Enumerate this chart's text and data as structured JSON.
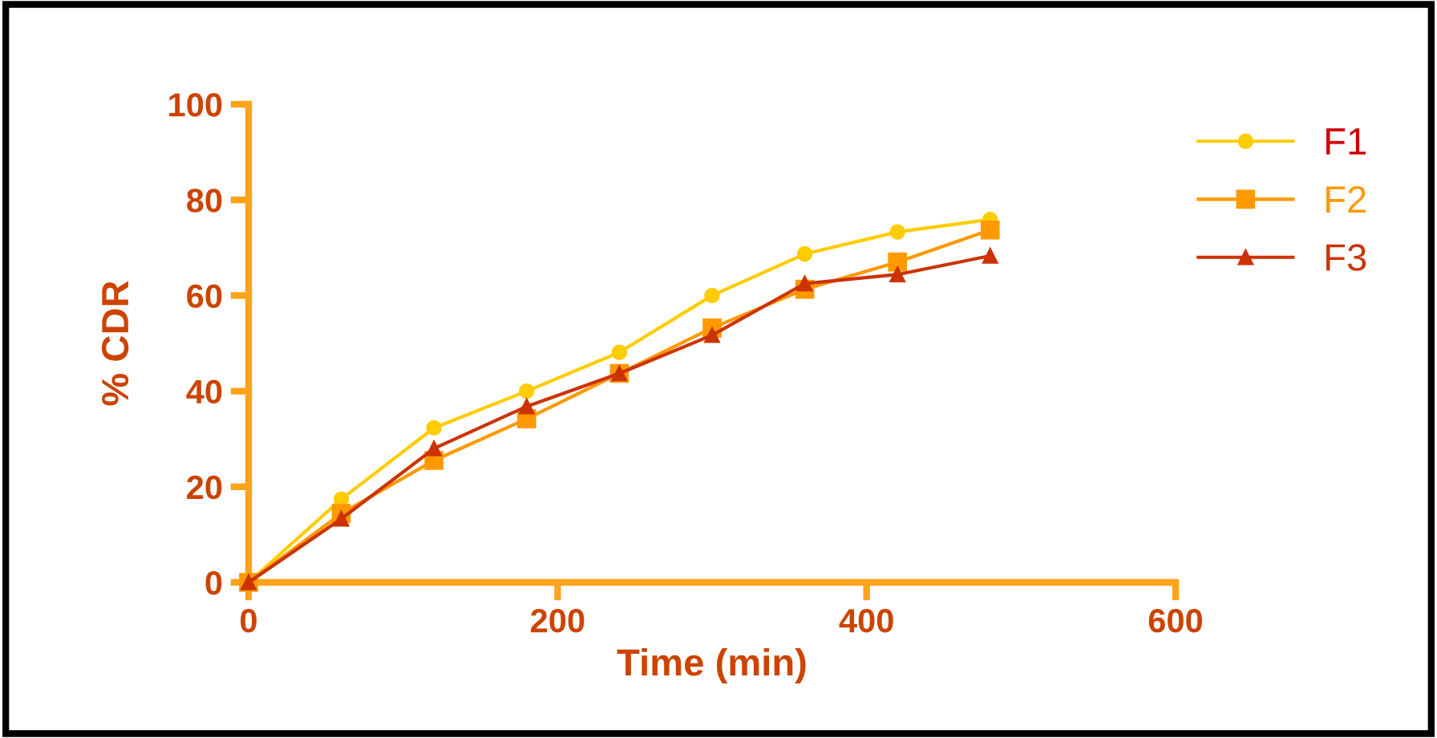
{
  "chart_data": {
    "type": "line",
    "xlabel": "Time (min)",
    "ylabel": "% CDR",
    "x": [
      0,
      60,
      120,
      180,
      240,
      300,
      360,
      420,
      480
    ],
    "series": [
      {
        "name": "F1",
        "color": "#ffcc00",
        "marker": "circle",
        "values": [
          0,
          17.4,
          32.3,
          40,
          48.1,
          60,
          68.7,
          73.3,
          75.9
        ]
      },
      {
        "name": "F2",
        "color": "#ff9900",
        "marker": "square",
        "values": [
          0,
          14.4,
          25.5,
          34.2,
          43.7,
          53.2,
          61.3,
          67,
          73.7
        ]
      },
      {
        "name": "F3",
        "color": "#cc3300",
        "marker": "triangle",
        "values": [
          0,
          13.3,
          28,
          36.8,
          43.7,
          51.7,
          62.5,
          64.4,
          68.3
        ]
      }
    ],
    "xlim": [
      0,
      600
    ],
    "ylim": [
      0,
      100
    ],
    "xticks": [
      0,
      200,
      400,
      600
    ],
    "yticks": [
      0,
      20,
      40,
      60,
      80,
      100
    ],
    "grid": false,
    "legend": "top right",
    "line_style": "solid"
  }
}
